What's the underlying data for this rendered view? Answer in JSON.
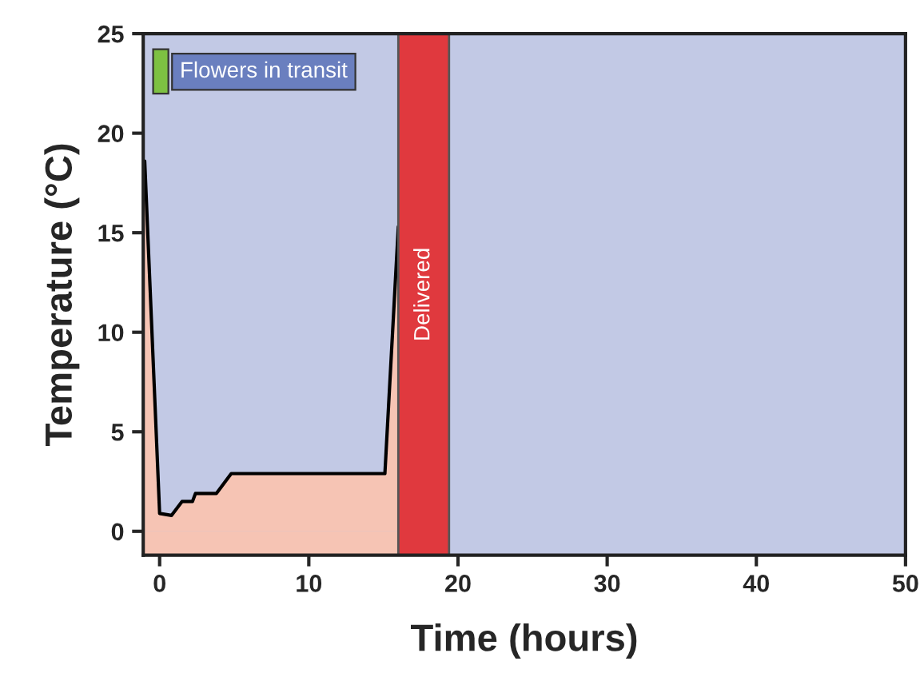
{
  "chart_data": {
    "type": "area",
    "xlabel": "Time (hours)",
    "ylabel": "Temperature (°C)",
    "x": [
      -1.0,
      0.0,
      0.8,
      1.5,
      2.2,
      2.4,
      3.8,
      4.8,
      15.1,
      16.0
    ],
    "series": [
      {
        "color": "#f6c4b4",
        "values": [
          18.6,
          0.9,
          0.8,
          1.5,
          1.5,
          1.9,
          1.9,
          2.9,
          2.9,
          15.3
        ]
      }
    ],
    "xlim": [
      -1.1,
      50
    ],
    "ylim": [
      -1.2,
      25
    ],
    "xticks": [
      0,
      10,
      20,
      30,
      40,
      50
    ],
    "yticks": [
      0,
      5,
      10,
      15,
      20,
      25
    ],
    "bands": [
      {
        "axis": "x",
        "from": 16.0,
        "to": 19.4,
        "label": "Delivered",
        "color": "#e0393e"
      }
    ],
    "annotations": [
      "Flowers in transit"
    ],
    "grid": false
  }
}
